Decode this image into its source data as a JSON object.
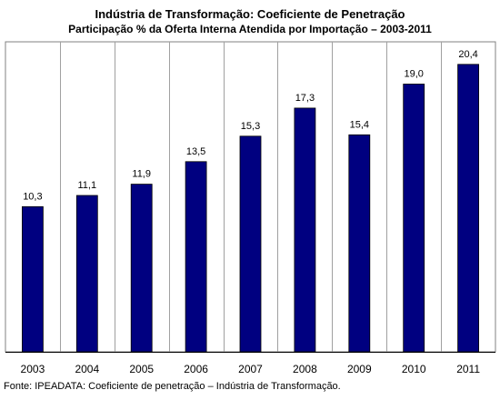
{
  "chart_data": {
    "type": "bar",
    "title": "Indústria de Transformação: Coeficiente de Penetração",
    "subtitle": "Participação % da Oferta Interna Atendida por Importação – 2003-2011",
    "categories": [
      "2003",
      "2004",
      "2005",
      "2006",
      "2007",
      "2008",
      "2009",
      "2010",
      "2011"
    ],
    "values": [
      10.3,
      11.1,
      11.9,
      13.5,
      15.3,
      17.3,
      15.4,
      19.0,
      20.4
    ],
    "value_labels": [
      "10,3",
      "11,1",
      "11,9",
      "13,5",
      "15,3",
      "17,3",
      "15,4",
      "19,0",
      "20,4"
    ],
    "ylim": [
      0,
      22
    ],
    "xlabel": "",
    "ylabel": "",
    "grid": "vertical-category-dividers",
    "legend": "none",
    "bar_color": "#000080"
  },
  "source": "Fonte: IPEADATA: Coeficiente de penetração – Indústria de Transformação."
}
